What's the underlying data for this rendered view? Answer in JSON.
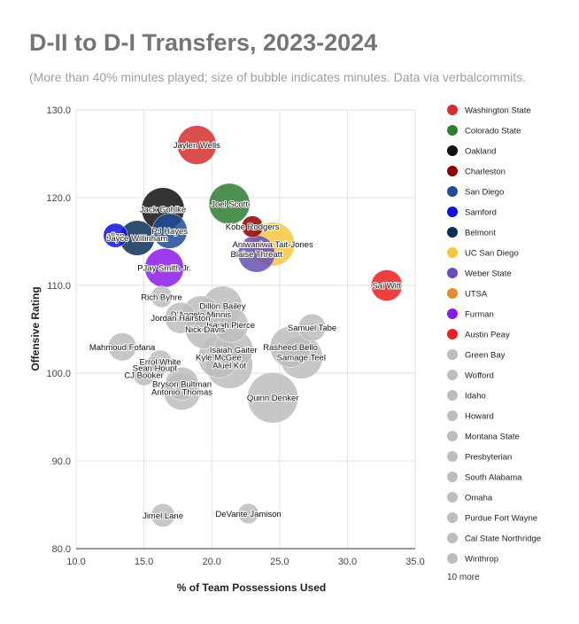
{
  "chart_data": {
    "type": "scatter",
    "variant": "bubble",
    "title": "D-II to D-I Transfers, 2023-2024",
    "subtitle": "(More than 40% minutes played; size of bubble indicates minutes. Data via verbalcommits.",
    "xlabel": "% of Team Possessions Used",
    "ylabel": "Offensive Rating",
    "xlim": [
      10,
      35
    ],
    "ylim": [
      80,
      130
    ],
    "xticks": [
      "10.0",
      "15.0",
      "20.0",
      "25.0",
      "30.0",
      "35.0"
    ],
    "yticks": [
      "80.0",
      "90.0",
      "100.0",
      "110.0",
      "120.0",
      "130.0"
    ],
    "grid": true,
    "legend_position": "right",
    "legend_more": "10 more",
    "legend": [
      {
        "name": "Washington State",
        "color": "#d32f2f"
      },
      {
        "name": "Colorado State",
        "color": "#2e7d32"
      },
      {
        "name": "Oakland",
        "color": "#111111"
      },
      {
        "name": "Charleston",
        "color": "#8b0000"
      },
      {
        "name": "San Diego",
        "color": "#1f4e96"
      },
      {
        "name": "Samford",
        "color": "#1010e0"
      },
      {
        "name": "Belmont",
        "color": "#0d2f57"
      },
      {
        "name": "UC San Diego",
        "color": "#f4c542"
      },
      {
        "name": "Weber State",
        "color": "#6a4fb3"
      },
      {
        "name": "UTSA",
        "color": "#e68a2e"
      },
      {
        "name": "Furman",
        "color": "#8a1be6"
      },
      {
        "name": "Austin Peay",
        "color": "#e82020"
      },
      {
        "name": "Green Bay",
        "color": "#bdbdbd"
      },
      {
        "name": "Wofford",
        "color": "#bdbdbd"
      },
      {
        "name": "Idaho",
        "color": "#bdbdbd"
      },
      {
        "name": "Howard",
        "color": "#bdbdbd"
      },
      {
        "name": "Montana State",
        "color": "#bdbdbd"
      },
      {
        "name": "Presbyterian",
        "color": "#bdbdbd"
      },
      {
        "name": "South Alabama",
        "color": "#bdbdbd"
      },
      {
        "name": "Omaha",
        "color": "#bdbdbd"
      },
      {
        "name": "Purdue Fort Wayne",
        "color": "#bdbdbd"
      },
      {
        "name": "Cal State Northridge",
        "color": "#bdbdbd"
      },
      {
        "name": "Winthrop",
        "color": "#bdbdbd"
      }
    ],
    "points": [
      {
        "label": "Jaylen Wells",
        "x": 18.9,
        "y": 126.0,
        "size": 1.0,
        "color": "#d32f2f"
      },
      {
        "label": "Joel Scott",
        "x": 21.3,
        "y": 119.3,
        "size": 1.05,
        "color": "#2e7d32"
      },
      {
        "label": "Jack Gohlke",
        "x": 16.4,
        "y": 118.7,
        "size": 1.1,
        "color": "#111111"
      },
      {
        "label": "Kobe Rodgers",
        "x": 23.0,
        "y": 116.7,
        "size": 0.55,
        "color": "#8b0000"
      },
      {
        "label": "PJ Hayes",
        "x": 16.9,
        "y": 116.2,
        "size": 0.9,
        "color": "#1f4e96"
      },
      {
        "label": "allan",
        "x": 12.9,
        "y": 115.7,
        "size": 0.62,
        "color": "#1010e0"
      },
      {
        "label": "Jayce Willinham",
        "x": 14.5,
        "y": 115.4,
        "size": 0.9,
        "color": "#0d2f57"
      },
      {
        "label": "Aniwaniwa Tait-Jones",
        "x": 24.5,
        "y": 114.7,
        "size": 1.12,
        "color": "#f4c542"
      },
      {
        "label": "Blaise Threatt",
        "x": 23.3,
        "y": 113.6,
        "size": 0.95,
        "color": "#6a4fb3"
      },
      {
        "label": "PJay Smith Jr.",
        "x": 16.5,
        "y": 112.0,
        "size": 1.0,
        "color": "#8a1be6"
      },
      {
        "label": "Sai Witt",
        "x": 32.9,
        "y": 110.0,
        "size": 0.8,
        "color": "#e82020"
      },
      {
        "label": "Rich Byhre",
        "x": 16.3,
        "y": 108.7,
        "size": 0.55,
        "color": "#bdbdbd"
      },
      {
        "label": "Dillon Bailey",
        "x": 20.8,
        "y": 107.7,
        "size": 1.0,
        "color": "#bdbdbd"
      },
      {
        "label": "D'Angelo Minnis",
        "x": 19.2,
        "y": 106.7,
        "size": 0.95,
        "color": "#bdbdbd"
      },
      {
        "label": "Jordan Hairston",
        "x": 17.7,
        "y": 106.3,
        "size": 0.8,
        "color": "#bdbdbd"
      },
      {
        "label": "Isaiah Pierce",
        "x": 21.4,
        "y": 105.5,
        "size": 0.9,
        "color": "#bdbdbd"
      },
      {
        "label": "Nick Davis",
        "x": 19.5,
        "y": 105.0,
        "size": 1.0,
        "color": "#bdbdbd"
      },
      {
        "label": "Samuel Tabe",
        "x": 27.4,
        "y": 105.2,
        "size": 0.7,
        "color": "#bdbdbd"
      },
      {
        "label": "Rasheed Bello",
        "x": 25.8,
        "y": 103.0,
        "size": 1.05,
        "color": "#bdbdbd"
      },
      {
        "label": "Mahmoud Fofana",
        "x": 13.4,
        "y": 103.0,
        "size": 0.72,
        "color": "#bdbdbd"
      },
      {
        "label": "Isaiah Gaiter",
        "x": 21.6,
        "y": 102.7,
        "size": 1.0,
        "color": "#bdbdbd"
      },
      {
        "label": "Samage Teel",
        "x": 26.6,
        "y": 101.8,
        "size": 1.1,
        "color": "#bdbdbd"
      },
      {
        "label": "Kyle McGee",
        "x": 20.5,
        "y": 101.8,
        "size": 1.05,
        "color": "#bdbdbd"
      },
      {
        "label": "Errol White",
        "x": 16.2,
        "y": 101.3,
        "size": 0.6,
        "color": "#bdbdbd"
      },
      {
        "label": "Aluel Kot",
        "x": 21.3,
        "y": 100.9,
        "size": 1.2,
        "color": "#bdbdbd"
      },
      {
        "label": "Sean Houpt",
        "x": 15.8,
        "y": 100.6,
        "size": 0.6,
        "color": "#bdbdbd"
      },
      {
        "label": "CJ Booker",
        "x": 15.0,
        "y": 99.8,
        "size": 0.55,
        "color": "#bdbdbd"
      },
      {
        "label": "Bryson Bultman",
        "x": 17.8,
        "y": 98.8,
        "size": 0.85,
        "color": "#bdbdbd"
      },
      {
        "label": "Antonio Thomas",
        "x": 17.8,
        "y": 97.9,
        "size": 0.95,
        "color": "#bdbdbd"
      },
      {
        "label": "Quinn Denker",
        "x": 24.5,
        "y": 97.2,
        "size": 1.3,
        "color": "#bdbdbd"
      },
      {
        "label": "DeVante Jamison",
        "x": 22.7,
        "y": 84.0,
        "size": 0.52,
        "color": "#bdbdbd"
      },
      {
        "label": "Jimel Lane",
        "x": 16.4,
        "y": 83.8,
        "size": 0.6,
        "color": "#bdbdbd"
      }
    ]
  }
}
